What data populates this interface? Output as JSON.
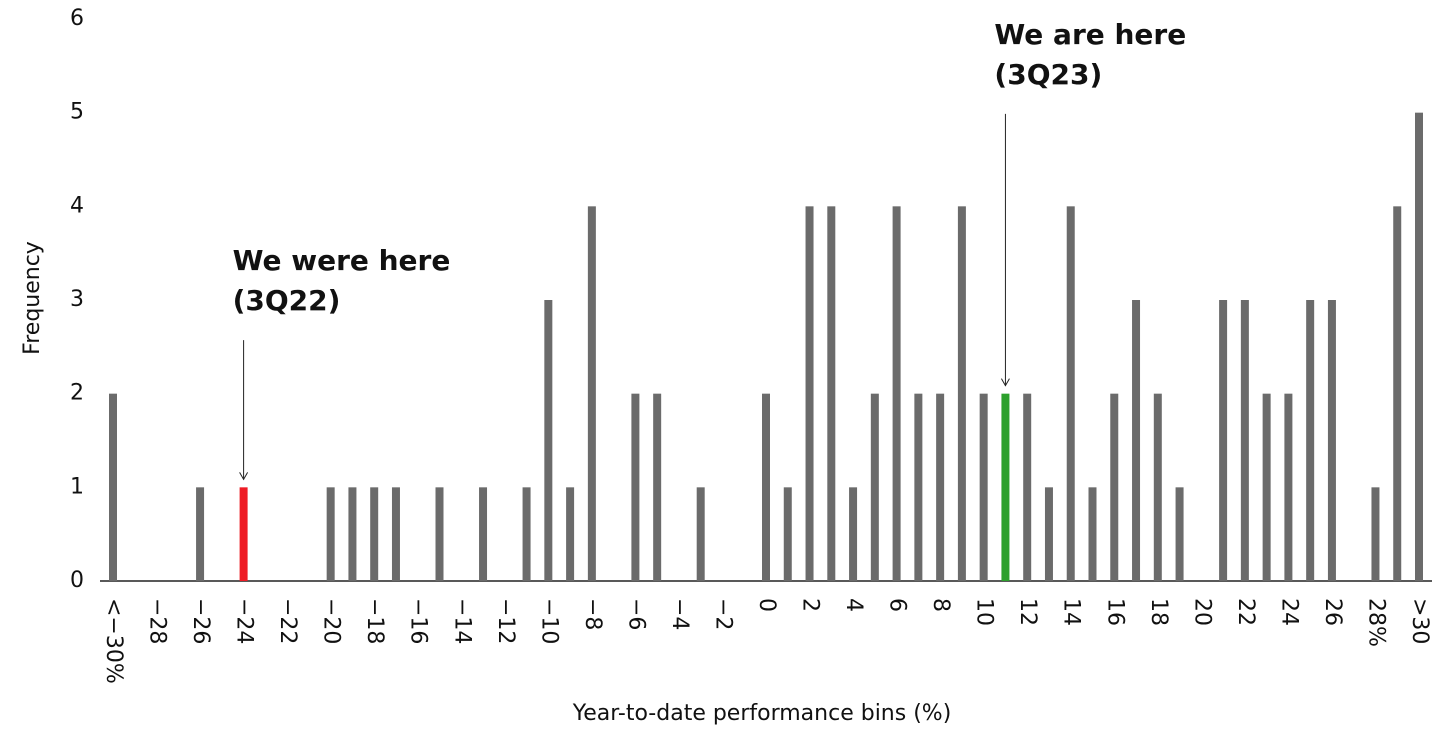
{
  "chart_data": {
    "type": "bar",
    "categories": [
      "<−30%",
      null,
      "−28",
      null,
      "−26",
      null,
      "−24",
      null,
      "−22",
      null,
      "−20",
      null,
      "−18",
      null,
      "−16",
      null,
      "−14",
      null,
      "−12",
      null,
      "−10",
      null,
      "−8",
      null,
      "−6",
      null,
      "−4",
      null,
      "−2",
      null,
      "0",
      null,
      "2",
      null,
      "4",
      null,
      "6",
      null,
      "8",
      null,
      "10",
      null,
      "12",
      null,
      "14",
      null,
      "16",
      null,
      "18",
      null,
      "20",
      null,
      "22",
      null,
      "24",
      null,
      "26",
      null,
      "28%",
      null,
      ">30"
    ],
    "values": [
      2,
      0,
      0,
      0,
      1,
      0,
      1,
      0,
      0,
      0,
      1,
      1,
      1,
      1,
      0,
      1,
      0,
      1,
      0,
      1,
      3,
      1,
      4,
      0,
      2,
      2,
      0,
      1,
      0,
      0,
      2,
      1,
      4,
      4,
      1,
      2,
      4,
      2,
      2,
      4,
      2,
      2,
      2,
      1,
      4,
      1,
      2,
      3,
      2,
      1,
      0,
      3,
      3,
      2,
      2,
      3,
      3,
      0,
      1,
      4,
      5
    ],
    "color": "#6b6b6b",
    "highlights": [
      {
        "bar": 6,
        "color": "#ee1c25",
        "lines": [
          "We were here",
          "(3Q22)"
        ]
      },
      {
        "bar": 41,
        "color": "#2ca02c",
        "lines": [
          "We are here",
          "(3Q23)"
        ]
      }
    ],
    "ylim": [
      0,
      6
    ],
    "yticks": [
      0,
      1,
      2,
      3,
      4,
      5,
      6
    ],
    "grid": false,
    "ylabel": "Frequency",
    "xlabel": "Year-to-date performance bins (%)"
  }
}
